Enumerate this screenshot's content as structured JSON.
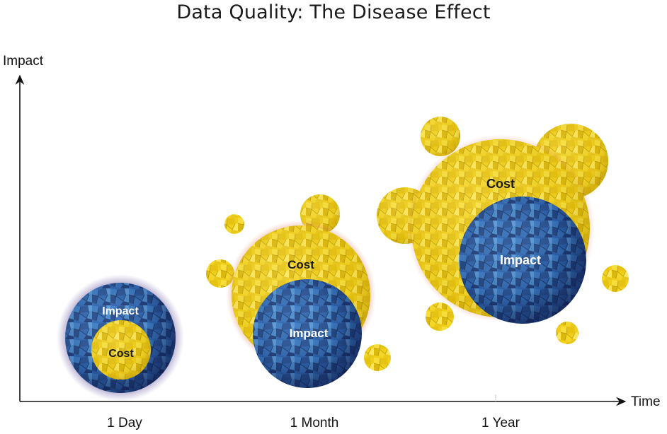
{
  "title": "Data Quality: The Disease Effect",
  "y_axis_label": "Impact",
  "x_axis_label": "Time",
  "x_ticks": [
    "1 Day",
    "1 Month",
    "1 Year"
  ],
  "bubble_labels": {
    "impact": "Impact",
    "cost": "Cost"
  },
  "colors": {
    "impact_blue": "#2a5aa8",
    "impact_dark": "#1a2a6a",
    "cost_yellow": "#f2d21a",
    "glow_purple": "#6b5a9e",
    "glow_red": "#c0503a"
  }
}
